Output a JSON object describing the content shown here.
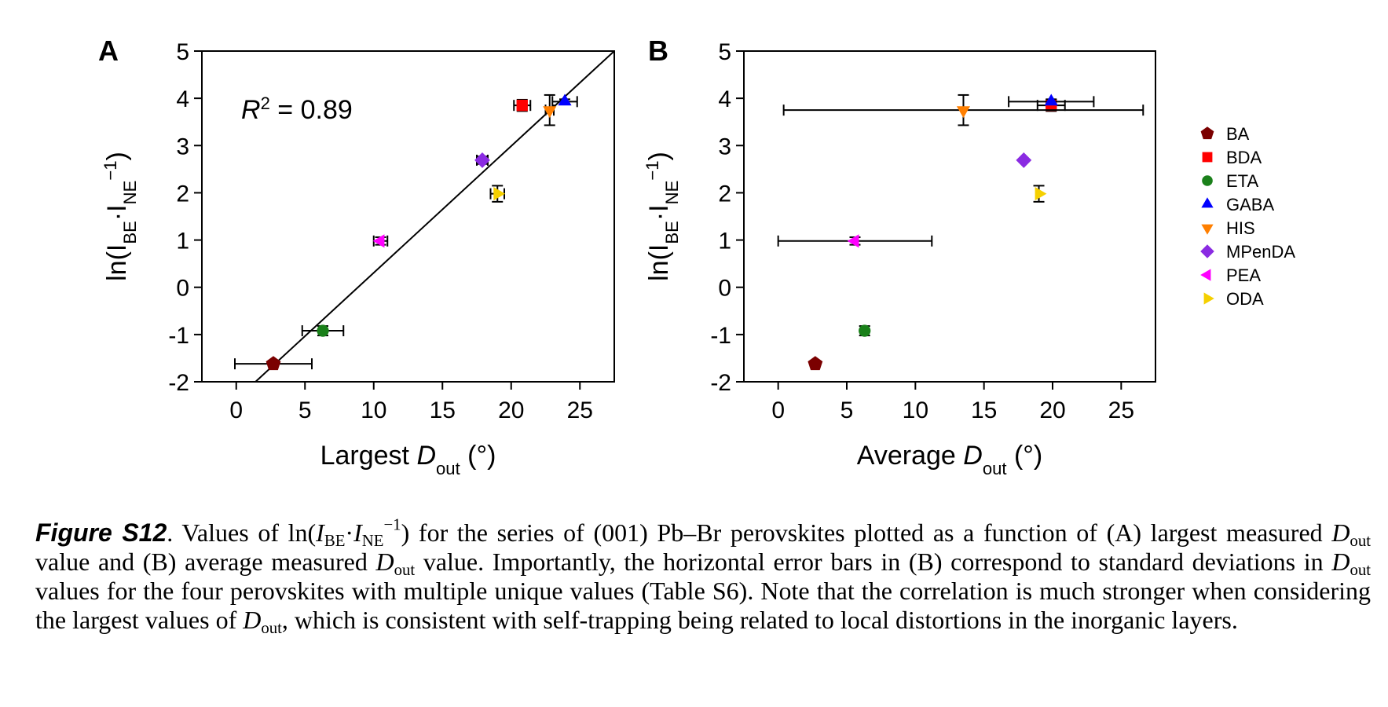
{
  "chart_data": [
    {
      "type": "scatter",
      "label": "A",
      "xlabel": [
        {
          "text": "Largest "
        },
        {
          "text": "D",
          "style": "italic"
        },
        {
          "text": "out",
          "style": "sub"
        },
        {
          "text": " (°)"
        }
      ],
      "ylabel": [
        {
          "text": "ln(I"
        },
        {
          "text": "BE",
          "style": "sub"
        },
        {
          "text": "·I"
        },
        {
          "text": "NE",
          "style": "sub"
        },
        {
          "text": "−1",
          "style": "sup"
        },
        {
          "text": ")"
        }
      ],
      "annotation": [
        {
          "text": "R",
          "style": "italic"
        },
        {
          "text": "2",
          "style": "sup"
        },
        {
          "text": " = 0.89"
        }
      ],
      "xlim": [
        -2.5,
        27.5
      ],
      "ylim": [
        -2,
        5
      ],
      "xticks": [
        0,
        5,
        10,
        15,
        20,
        25
      ],
      "yticks": [
        -2,
        -1,
        0,
        1,
        2,
        3,
        4,
        5
      ],
      "fit_line": {
        "x": [
          1.4,
          27.5
        ],
        "y": [
          -2,
          5
        ],
        "color": "#000000"
      },
      "series": [
        {
          "color": "#7b0000",
          "marker": "pentagon",
          "x": [
            2.7
          ],
          "y": [
            -1.62
          ],
          "xerr": [
            2.8
          ],
          "yerr": [
            0.05
          ]
        },
        {
          "color": "#ff0000",
          "marker": "square",
          "x": [
            20.8
          ],
          "y": [
            3.85
          ],
          "xerr": [
            0.6
          ],
          "yerr": [
            0.12
          ]
        },
        {
          "color": "#1a801a",
          "marker": "circle",
          "x": [
            6.3
          ],
          "y": [
            -0.92
          ],
          "xerr": [
            1.5
          ],
          "yerr": [
            0.1
          ]
        },
        {
          "color": "#0000ff",
          "marker": "triangle-up",
          "x": [
            23.9
          ],
          "y": [
            3.93
          ],
          "xerr": [
            0.9
          ],
          "yerr": [
            0.05
          ]
        },
        {
          "color": "#ff7f00",
          "marker": "triangle-down",
          "x": [
            22.8
          ],
          "y": [
            3.75
          ],
          "xerr": [
            0.3
          ],
          "yerr": [
            0.32
          ]
        },
        {
          "color": "#8a2be2",
          "marker": "diamond",
          "x": [
            17.9
          ],
          "y": [
            2.69
          ],
          "xerr": [
            0.4
          ],
          "yerr": [
            0.08
          ]
        },
        {
          "color": "#ff00ff",
          "marker": "triangle-left",
          "x": [
            10.5
          ],
          "y": [
            0.98
          ],
          "xerr": [
            0.5
          ],
          "yerr": [
            0.08
          ]
        },
        {
          "color": "#f5d000",
          "marker": "triangle-right",
          "x": [
            19.0
          ],
          "y": [
            1.98
          ],
          "xerr": [
            0.5
          ],
          "yerr": [
            0.17
          ]
        }
      ]
    },
    {
      "type": "scatter",
      "label": "B",
      "xlabel": [
        {
          "text": "Average "
        },
        {
          "text": "D",
          "style": "italic"
        },
        {
          "text": "out",
          "style": "sub"
        },
        {
          "text": " (°)"
        }
      ],
      "ylabel": [
        {
          "text": "ln(I"
        },
        {
          "text": "BE",
          "style": "sub"
        },
        {
          "text": "·I"
        },
        {
          "text": "NE",
          "style": "sub"
        },
        {
          "text": "−1",
          "style": "sup"
        },
        {
          "text": ")"
        }
      ],
      "xlim": [
        -2.5,
        27.5
      ],
      "ylim": [
        -2,
        5
      ],
      "xticks": [
        0,
        5,
        10,
        15,
        20,
        25
      ],
      "yticks": [
        -2,
        -1,
        0,
        1,
        2,
        3,
        4,
        5
      ],
      "legend": true,
      "legend_position": "right",
      "series": [
        {
          "name": "BA",
          "color": "#7b0000",
          "marker": "pentagon",
          "x": [
            2.7
          ],
          "y": [
            -1.62
          ],
          "xerr": [
            null
          ],
          "yerr": [
            0.05
          ]
        },
        {
          "name": "BDA",
          "color": "#ff0000",
          "marker": "square",
          "x": [
            19.9
          ],
          "y": [
            3.85
          ],
          "xerr": [
            1.0
          ],
          "yerr": [
            0.12
          ]
        },
        {
          "name": "ETA",
          "color": "#1a801a",
          "marker": "circle",
          "x": [
            6.3
          ],
          "y": [
            -0.92
          ],
          "xerr": [
            null
          ],
          "yerr": [
            0.1
          ]
        },
        {
          "name": "GABA",
          "color": "#0000ff",
          "marker": "triangle-up",
          "x": [
            19.9
          ],
          "y": [
            3.93
          ],
          "xerr": [
            3.1
          ],
          "yerr": [
            0.05
          ]
        },
        {
          "name": "HIS",
          "color": "#ff7f00",
          "marker": "triangle-down",
          "x": [
            13.5
          ],
          "y": [
            3.75
          ],
          "xerr": [
            13.1
          ],
          "yerr": [
            0.32
          ]
        },
        {
          "name": "MPenDA",
          "color": "#8a2be2",
          "marker": "diamond",
          "x": [
            17.9
          ],
          "y": [
            2.69
          ],
          "xerr": [
            null
          ],
          "yerr": [
            null
          ]
        },
        {
          "name": "PEA",
          "color": "#ff00ff",
          "marker": "triangle-left",
          "x": [
            5.6
          ],
          "y": [
            0.98
          ],
          "xerr": [
            5.6
          ],
          "yerr": [
            0.08
          ]
        },
        {
          "name": "ODA",
          "color": "#f5d000",
          "marker": "triangle-right",
          "x": [
            19.0
          ],
          "y": [
            1.98
          ],
          "xerr": [
            null
          ],
          "yerr": [
            0.17
          ]
        }
      ]
    }
  ],
  "caption": [
    {
      "text": "Figure S12",
      "style": "bold-italic"
    },
    {
      "text": ". Values of ln("
    },
    {
      "text": "I",
      "style": "italic"
    },
    {
      "text": "BE",
      "style": "sub"
    },
    {
      "text": "·"
    },
    {
      "text": "I",
      "style": "italic"
    },
    {
      "text": "NE",
      "style": "sub"
    },
    {
      "text": "−1",
      "style": "sup"
    },
    {
      "text": ") for the series of (001) Pb–Br perovskites plotted as a function of (A) largest measured "
    },
    {
      "text": "D",
      "style": "italic"
    },
    {
      "text": "out",
      "style": "sub"
    },
    {
      "text": " value and (B) average measured "
    },
    {
      "text": "D",
      "style": "italic"
    },
    {
      "text": "out",
      "style": "sub"
    },
    {
      "text": " value. Importantly, the horizontal error bars in (B) correspond to standard deviations in "
    },
    {
      "text": "D",
      "style": "italic"
    },
    {
      "text": "out",
      "style": "sub"
    },
    {
      "text": " values for the four perovskites with multiple unique values (Table S6). Note that the correlation is much stronger when considering the largest values of "
    },
    {
      "text": "D",
      "style": "italic"
    },
    {
      "text": "out",
      "style": "sub"
    },
    {
      "text": ", which is consistent with self-trapping being related to local distortions in the inorganic layers."
    }
  ]
}
